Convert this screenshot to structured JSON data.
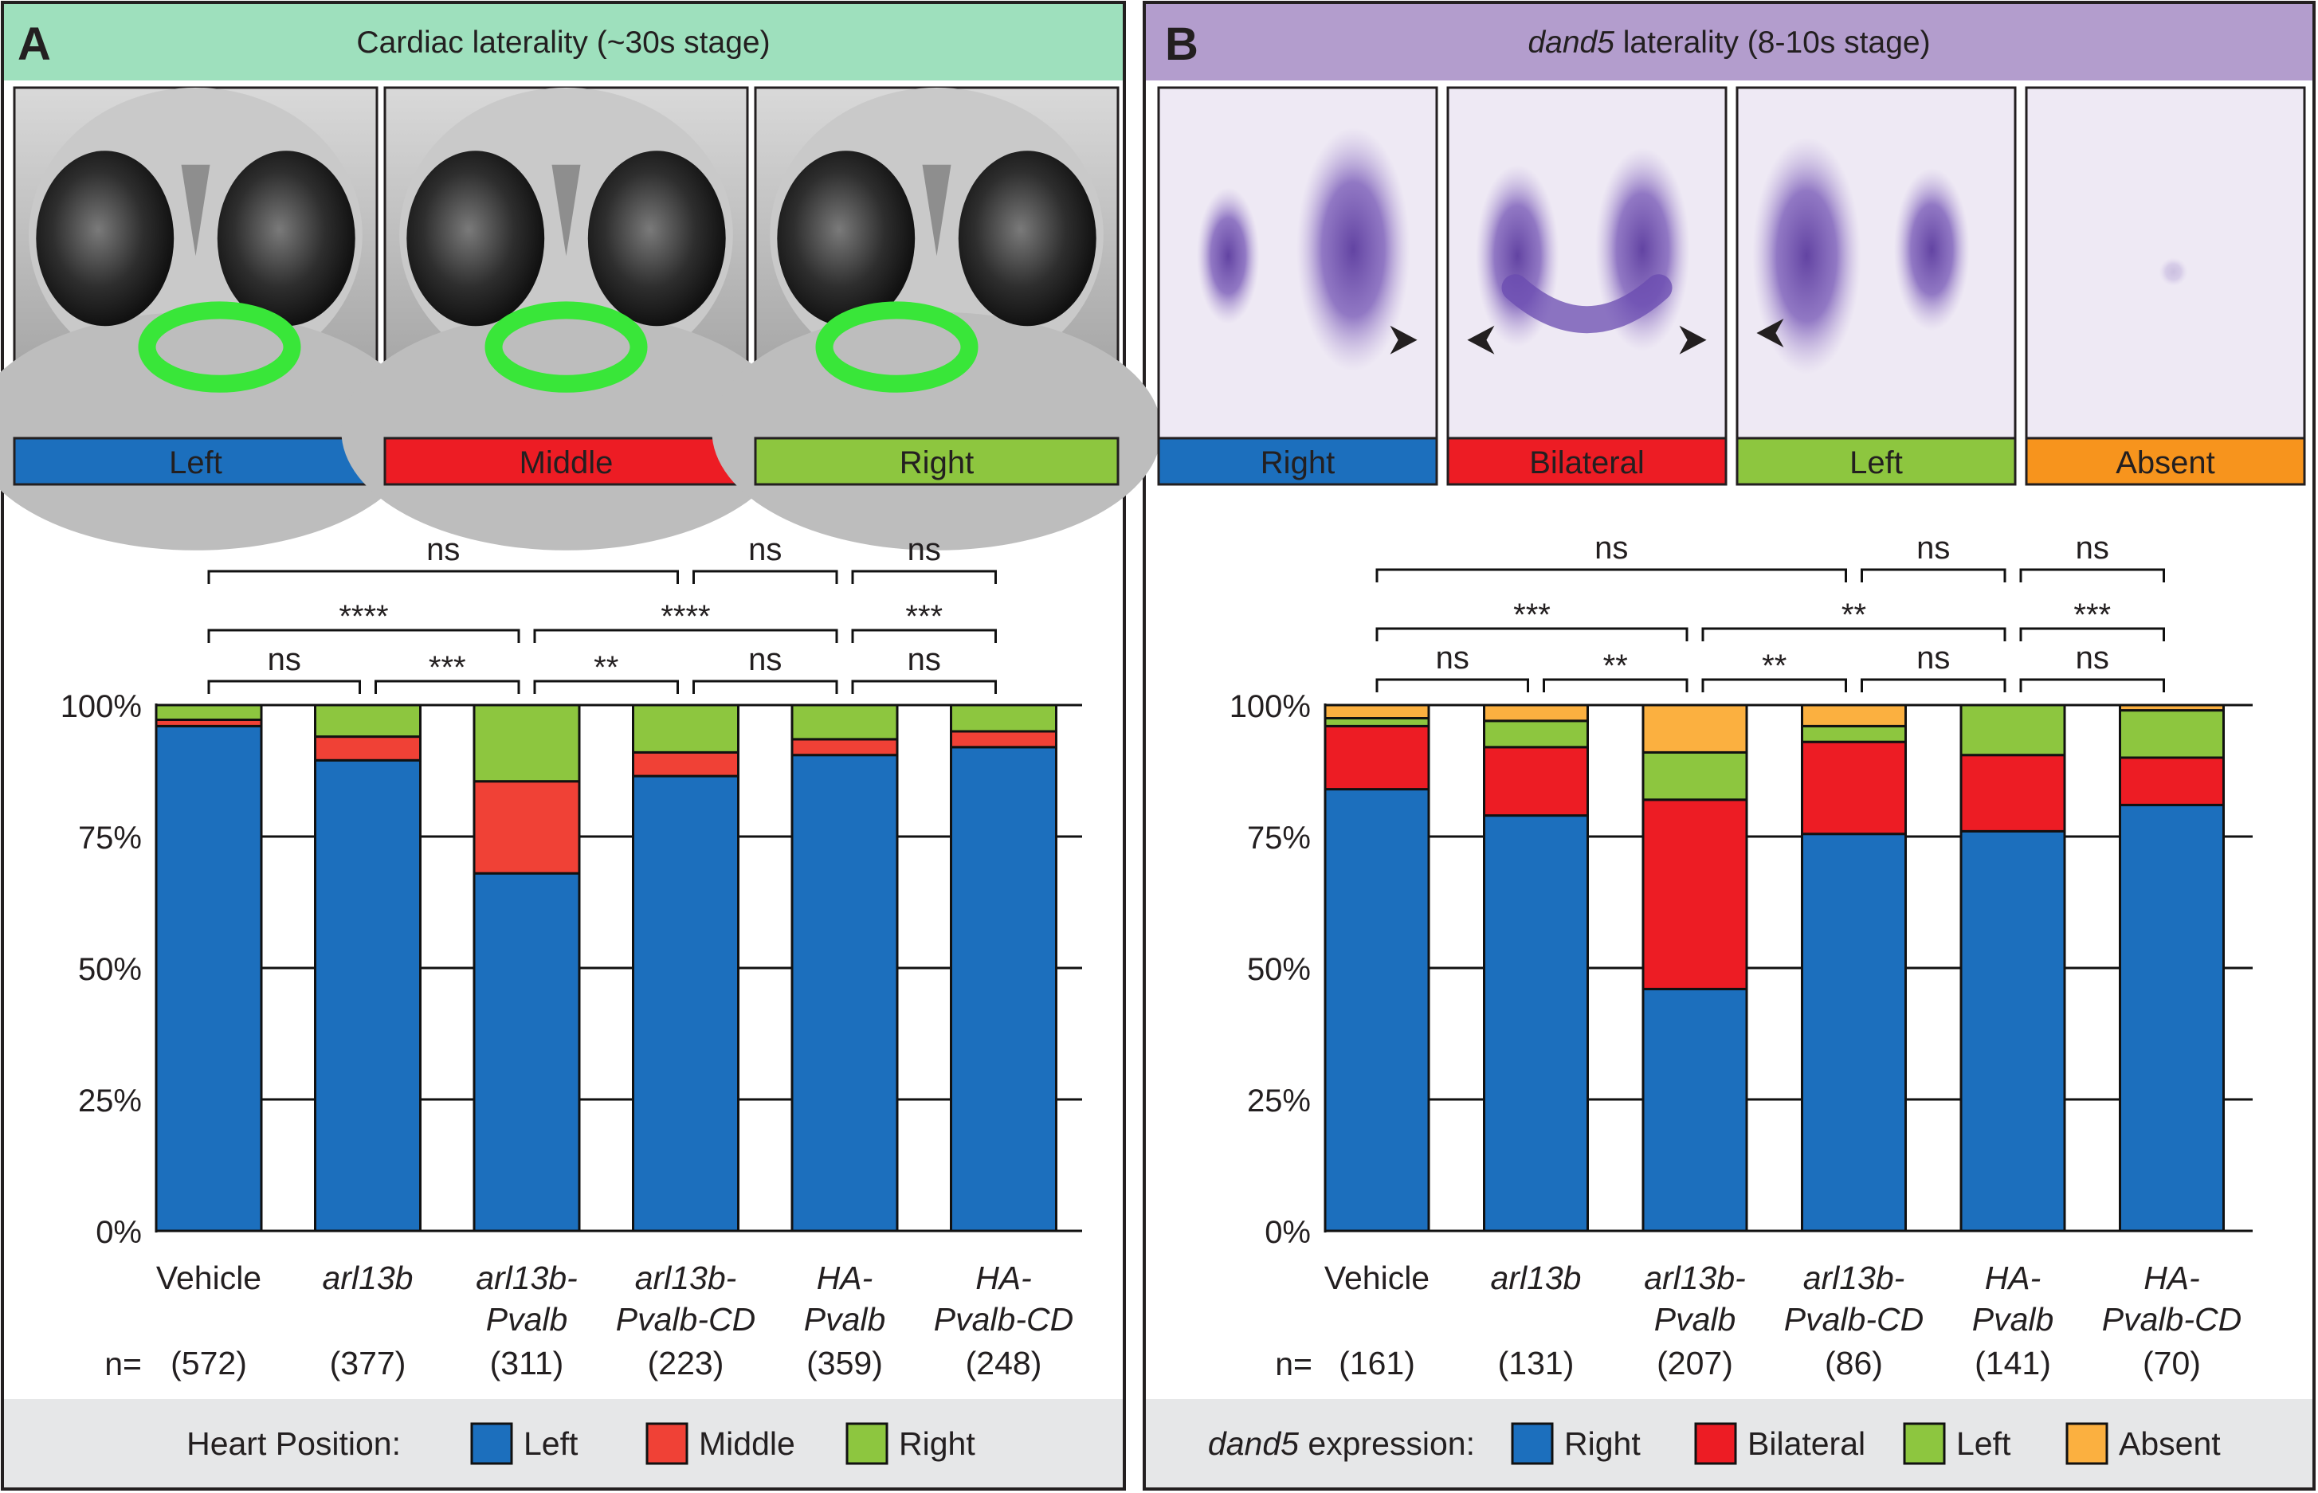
{
  "colors": {
    "panelA_header": "#9ee0bd",
    "panelB_header": "#b39dcd",
    "footer_bg": "#e6e7e8",
    "blue": "#1c6fbd",
    "red": "#ed1c24",
    "red_light": "#f04136",
    "green": "#8dc63f",
    "orange": "#fbb040",
    "dark_orange": "#f7941d"
  },
  "panelA": {
    "letter": "A",
    "title": "Cardiac laterality (~30s stage)",
    "images": [
      {
        "label": "Left",
        "color": "#1c6fbd",
        "icon": "embryo-heart-left-image"
      },
      {
        "label": "Middle",
        "color": "#ed1c24",
        "icon": "embryo-heart-middle-image"
      },
      {
        "label": "Right",
        "color": "#8dc63f",
        "icon": "embryo-heart-right-image"
      }
    ],
    "legend_title": "Heart Position:",
    "legend": [
      {
        "label": "Left",
        "color": "#1c6fbd"
      },
      {
        "label": "Middle",
        "color": "#f04136"
      },
      {
        "label": "Right",
        "color": "#8dc63f"
      }
    ],
    "n_prefix": "n="
  },
  "panelB": {
    "letter": "B",
    "title_italic": "dand5",
    "title_rest": " laterality (8-10s stage)",
    "images": [
      {
        "label": "Right",
        "color": "#1c6fbd",
        "icon": "dand5-right-image"
      },
      {
        "label": "Bilateral",
        "color": "#ed1c24",
        "icon": "dand5-bilateral-image"
      },
      {
        "label": "Left",
        "color": "#8dc63f",
        "icon": "dand5-left-image"
      },
      {
        "label": "Absent",
        "color": "#f7941d",
        "icon": "dand5-absent-image"
      }
    ],
    "legend_title_italic": "dand5",
    "legend_title_rest": " expression:",
    "legend": [
      {
        "label": "Right",
        "color": "#1c6fbd"
      },
      {
        "label": "Bilateral",
        "color": "#ed1c24"
      },
      {
        "label": "Left",
        "color": "#8dc63f"
      },
      {
        "label": "Absent",
        "color": "#fbb040"
      }
    ],
    "n_prefix": "n="
  },
  "chart_data": [
    {
      "type": "bar",
      "stacked": true,
      "categories": [
        [
          "Vehicle"
        ],
        [
          "arl13b"
        ],
        [
          "arl13b-",
          "Pvalb"
        ],
        [
          "arl13b-",
          "Pvalb-CD"
        ],
        [
          "HA-",
          "Pvalb"
        ],
        [
          "HA-",
          "Pvalb-CD"
        ]
      ],
      "category_italic": [
        false,
        true,
        true,
        true,
        true,
        true
      ],
      "n": [
        "(572)",
        "(377)",
        "(311)",
        "(223)",
        "(359)",
        "(248)"
      ],
      "series": [
        {
          "name": "Left",
          "color": "#1c6fbd",
          "values": [
            96,
            89.5,
            68,
            86.5,
            90.5,
            92
          ]
        },
        {
          "name": "Middle",
          "color": "#f04136",
          "values": [
            1.2,
            4.5,
            17.5,
            4.5,
            3,
            3
          ]
        },
        {
          "name": "Right",
          "color": "#8dc63f",
          "values": [
            2.8,
            6,
            14.5,
            9,
            6.5,
            5
          ]
        }
      ],
      "yticks": [
        "0%",
        "25%",
        "50%",
        "75%",
        "100%"
      ],
      "ylim": [
        0,
        100
      ],
      "grid": true,
      "legend_position": "bottom",
      "significance": [
        {
          "from": 0,
          "to": 1,
          "label": "ns",
          "row": 0
        },
        {
          "from": 1,
          "to": 2,
          "label": "***",
          "row": 0
        },
        {
          "from": 2,
          "to": 3,
          "label": "**",
          "row": 0
        },
        {
          "from": 3,
          "to": 4,
          "label": "ns",
          "row": 0
        },
        {
          "from": 4,
          "to": 5,
          "label": "ns",
          "row": 0
        },
        {
          "from": 0,
          "to": 2,
          "label": "****",
          "row": 1
        },
        {
          "from": 2,
          "to": 4,
          "label": "****",
          "row": 1
        },
        {
          "from": 4,
          "to": 5,
          "label": "***",
          "row": 1
        },
        {
          "from": 0,
          "to": 3,
          "label": "ns",
          "row": 2
        },
        {
          "from": 3,
          "to": 4,
          "label": "ns",
          "row": 2
        },
        {
          "from": 4,
          "to": 5,
          "label": "ns",
          "row": 2
        }
      ]
    },
    {
      "type": "bar",
      "stacked": true,
      "categories": [
        [
          "Vehicle"
        ],
        [
          "arl13b"
        ],
        [
          "arl13b-",
          "Pvalb"
        ],
        [
          "arl13b-",
          "Pvalb-CD"
        ],
        [
          "HA-",
          "Pvalb"
        ],
        [
          "HA-",
          "Pvalb-CD"
        ]
      ],
      "category_italic": [
        false,
        true,
        true,
        true,
        true,
        true
      ],
      "n": [
        "(161)",
        "(131)",
        "(207)",
        "(86)",
        "(141)",
        "(70)"
      ],
      "series": [
        {
          "name": "Right",
          "color": "#1c6fbd",
          "values": [
            84,
            79,
            46,
            75.5,
            76,
            81
          ]
        },
        {
          "name": "Bilateral",
          "color": "#ed1c24",
          "values": [
            12,
            13,
            36,
            17.5,
            14.5,
            9
          ]
        },
        {
          "name": "Left",
          "color": "#8dc63f",
          "values": [
            1.5,
            5,
            9,
            3,
            9.5,
            9
          ]
        },
        {
          "name": "Absent",
          "color": "#fbb040",
          "values": [
            2.5,
            3,
            9,
            4,
            0,
            1
          ]
        }
      ],
      "yticks": [
        "0%",
        "25%",
        "50%",
        "75%",
        "100%"
      ],
      "ylim": [
        0,
        100
      ],
      "grid": true,
      "legend_position": "bottom",
      "significance": [
        {
          "from": 0,
          "to": 1,
          "label": "ns",
          "row": 0
        },
        {
          "from": 1,
          "to": 2,
          "label": "**",
          "row": 0
        },
        {
          "from": 2,
          "to": 3,
          "label": "**",
          "row": 0
        },
        {
          "from": 3,
          "to": 4,
          "label": "ns",
          "row": 0
        },
        {
          "from": 4,
          "to": 5,
          "label": "ns",
          "row": 0
        },
        {
          "from": 0,
          "to": 2,
          "label": "***",
          "row": 1
        },
        {
          "from": 2,
          "to": 4,
          "label": "**",
          "row": 1
        },
        {
          "from": 4,
          "to": 5,
          "label": "***",
          "row": 1
        },
        {
          "from": 0,
          "to": 3,
          "label": "ns",
          "row": 2
        },
        {
          "from": 3,
          "to": 4,
          "label": "ns",
          "row": 2
        },
        {
          "from": 4,
          "to": 5,
          "label": "ns",
          "row": 2
        }
      ]
    }
  ]
}
